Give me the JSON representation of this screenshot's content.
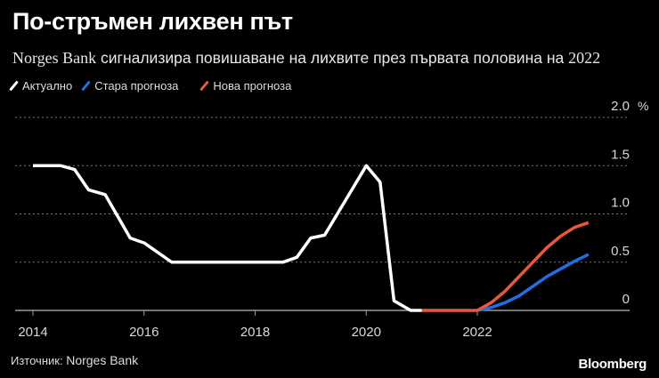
{
  "header": {
    "title": "По-стръмен лихвен път",
    "subtitle_prefix": "Norges Bank",
    "subtitle_rest": " сигнализира повишаване на лихвите през първата половина на ",
    "subtitle_year": "2022"
  },
  "legend": [
    {
      "label": "Актуално",
      "color": "#ffffff"
    },
    {
      "label": "Стара прогноза",
      "color": "#1f6fe6"
    },
    {
      "label": "Нова прогноза",
      "color": "#e8583a"
    }
  ],
  "footer": {
    "source_label": "Източник:",
    "source_value": "Norges Bank",
    "brand": "Bloomberg"
  },
  "axes": {
    "y_ticks": [
      "2.0",
      "1.5",
      "1.0",
      "0.5",
      "0"
    ],
    "y_unit": "%",
    "x_ticks": [
      "2014",
      "2016",
      "2018",
      "2020",
      "2022"
    ]
  },
  "chart_data": {
    "type": "line",
    "title": "По-стръмен лихвен път",
    "subtitle": "Norges Bank сигнализира повишаване на лихвите през първата половина на 2022",
    "xlabel": "",
    "ylabel": "%",
    "ylim": [
      0,
      2.0
    ],
    "xlim": [
      2013.7,
      2024.7
    ],
    "grid": true,
    "legend_position": "top-left",
    "x_ticks": [
      2014,
      2016,
      2018,
      2020,
      2022
    ],
    "y_ticks": [
      0,
      0.5,
      1.0,
      1.5,
      2.0
    ],
    "series": [
      {
        "name": "Актуално",
        "color": "#ffffff",
        "x": [
          2014.0,
          2014.5,
          2014.75,
          2015.0,
          2015.3,
          2015.75,
          2016.0,
          2016.5,
          2017.0,
          2018.0,
          2018.5,
          2018.75,
          2019.0,
          2019.25,
          2020.0,
          2020.25,
          2020.5,
          2020.8,
          2021.0
        ],
        "values": [
          1.5,
          1.5,
          1.46,
          1.25,
          1.2,
          0.75,
          0.7,
          0.5,
          0.5,
          0.5,
          0.5,
          0.55,
          0.75,
          0.78,
          1.5,
          1.33,
          0.1,
          0.0,
          0.0
        ]
      },
      {
        "name": "Стара прогноза",
        "color": "#1f6fe6",
        "x": [
          2022.0,
          2022.25,
          2022.5,
          2022.75,
          2023.0,
          2023.25,
          2023.5,
          2023.75,
          2024.0
        ],
        "values": [
          0.0,
          0.03,
          0.08,
          0.15,
          0.25,
          0.35,
          0.43,
          0.51,
          0.58
        ]
      },
      {
        "name": "Нова прогноза",
        "color": "#e8583a",
        "x": [
          2021.0,
          2021.5,
          2022.0,
          2022.25,
          2022.5,
          2022.75,
          2023.0,
          2023.25,
          2023.5,
          2023.75,
          2024.0
        ],
        "values": [
          0.0,
          0.0,
          0.0,
          0.08,
          0.2,
          0.35,
          0.5,
          0.65,
          0.77,
          0.86,
          0.91
        ]
      }
    ]
  }
}
